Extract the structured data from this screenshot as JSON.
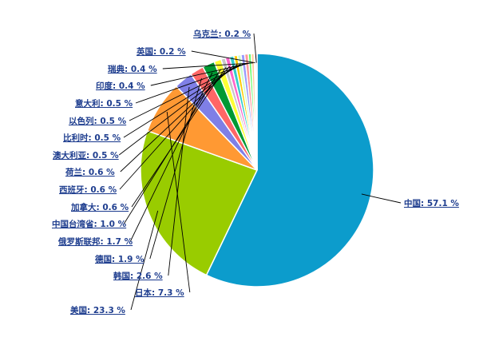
{
  "chart_data": {
    "type": "pie",
    "title": "",
    "slices": [
      {
        "label": "中国",
        "value": 57.1,
        "display": "中国: 57.1 %",
        "color": "#0c9ccc"
      },
      {
        "label": "美国",
        "value": 23.3,
        "display": "美国: 23.3 %",
        "color": "#99cc00"
      },
      {
        "label": "日本",
        "value": 7.3,
        "display": "日本: 7.3 %",
        "color": "#ff9933"
      },
      {
        "label": "韩国",
        "value": 2.6,
        "display": "韩国: 2.6 %",
        "color": "#7f7fe6"
      },
      {
        "label": "德国",
        "value": 1.9,
        "display": "德国: 1.9 %",
        "color": "#ff6666"
      },
      {
        "label": "俄罗斯联邦",
        "value": 1.7,
        "display": "俄罗斯联邦: 1.7 %",
        "color": "#009933"
      },
      {
        "label": "中国台湾省",
        "value": 1.0,
        "display": "中国台湾省: 1.0 %",
        "color": "#ffff33"
      },
      {
        "label": "加拿大",
        "value": 0.6,
        "display": "加拿大: 0.6 %",
        "color": "#c8c8c8"
      },
      {
        "label": "西班牙",
        "value": 0.6,
        "display": "西班牙: 0.6 %",
        "color": "#ff66cc"
      },
      {
        "label": "荷兰",
        "value": 0.6,
        "display": "荷兰: 0.6 %",
        "color": "#33cccc"
      },
      {
        "label": "澳大利亚",
        "value": 0.5,
        "display": "澳大利亚: 0.5 %",
        "color": "#ffcc00"
      },
      {
        "label": "比利时",
        "value": 0.5,
        "display": "比利时: 0.5 %",
        "color": "#ccffcc"
      },
      {
        "label": "以色列",
        "value": 0.5,
        "display": "以色列: 0.5 %",
        "color": "#9999ff"
      },
      {
        "label": "意大利",
        "value": 0.5,
        "display": "意大利: 0.5 %",
        "color": "#ff9999"
      },
      {
        "label": "印度",
        "value": 0.4,
        "display": "印度: 0.4 %",
        "color": "#66ff66"
      },
      {
        "label": "瑞典",
        "value": 0.4,
        "display": "瑞典: 0.4 %",
        "color": "#ffcc99"
      },
      {
        "label": "英国",
        "value": 0.2,
        "display": "英国: 0.2 %",
        "color": "#ccccff"
      },
      {
        "label": "乌克兰",
        "value": 0.2,
        "display": "乌克兰: 0.2 %",
        "color": "#ff99cc"
      }
    ]
  }
}
